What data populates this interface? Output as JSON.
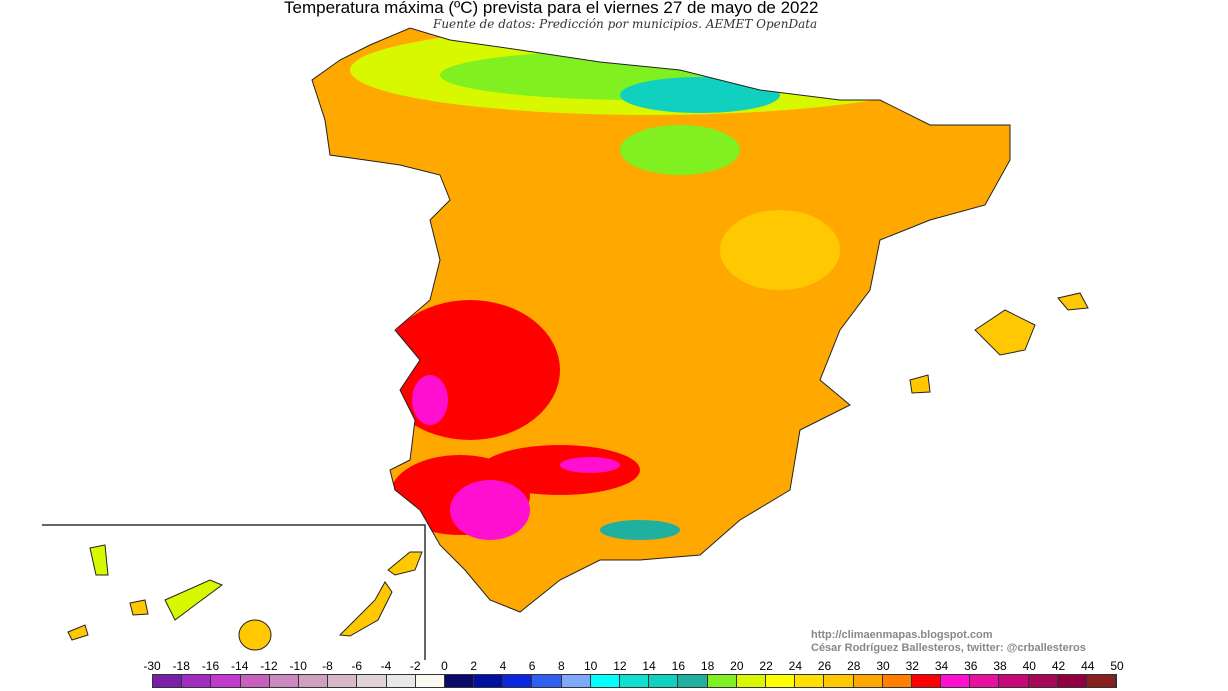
{
  "header": {
    "title": "Temperatura máxima (ºC) prevista para el viernes 27 de mayo de 2022",
    "subtitle": "Fuente de datos: Predicción por municipios. AEMET OpenData"
  },
  "credits": {
    "url": "http://climaenmapas.blogspot.com",
    "author": "César Rodríguez Ballesteros, twitter: @crballesteros"
  },
  "legend": {
    "unit": "ºC",
    "labels": [
      "-30",
      "-18",
      "-16",
      "-14",
      "-12",
      "-10",
      "-8",
      "-6",
      "-4",
      "-2",
      "0",
      "2",
      "4",
      "6",
      "8",
      "10",
      "12",
      "14",
      "16",
      "18",
      "20",
      "22",
      "24",
      "26",
      "28",
      "30",
      "32",
      "34",
      "36",
      "38",
      "40",
      "42",
      "44",
      "50"
    ],
    "colors": [
      "#7a1fa8",
      "#a02cc0",
      "#c03ad0",
      "#c860c0",
      "#cc88c0",
      "#d0a0c0",
      "#d8b8c8",
      "#e0d4d8",
      "#e8e8e8",
      "#fafaf0",
      "#0a0a6a",
      "#0010a0",
      "#0a28e0",
      "#3060f0",
      "#80a8f8",
      "#00ffff",
      "#10e0d0",
      "#10d0c0",
      "#20b0a0",
      "#80f020",
      "#d8f800",
      "#ffff00",
      "#ffe000",
      "#ffc800",
      "#ffa800",
      "#ff8000",
      "#ff0000",
      "#ff10d0",
      "#e810a0",
      "#c80878",
      "#a80858",
      "#900040",
      "#882020"
    ]
  },
  "map": {
    "region": "Spain",
    "dominant_colors": {
      "base": "#ffa800",
      "north": "#80f020",
      "southwest": "#ff0000",
      "hottest": "#ff10d0"
    }
  }
}
